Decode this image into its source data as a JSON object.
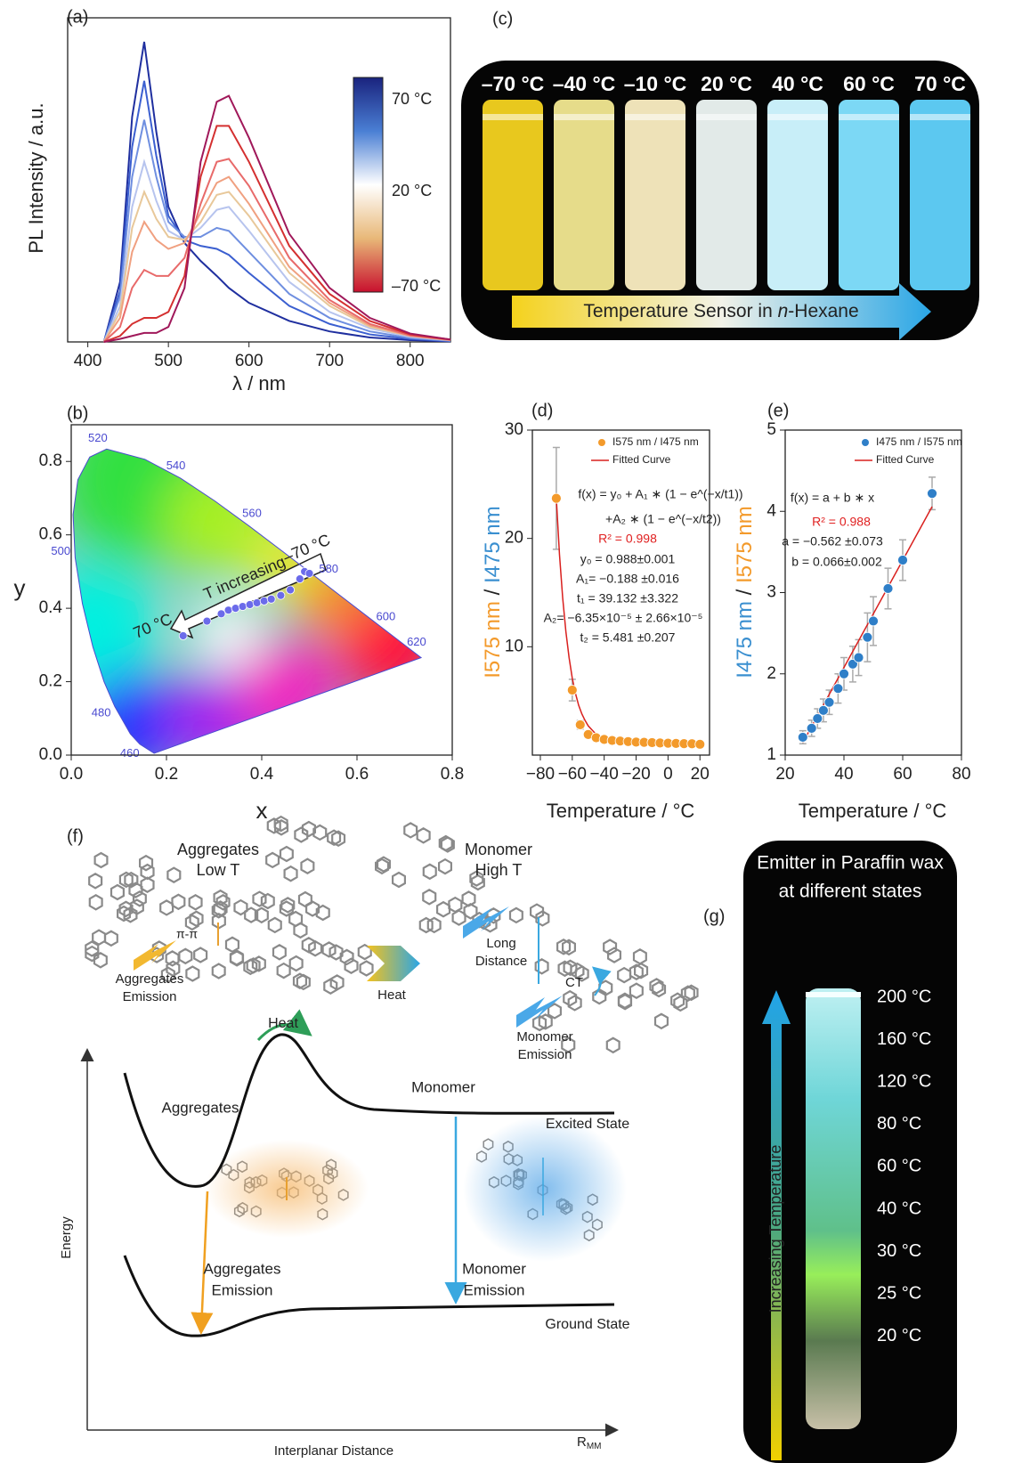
{
  "chart_data": [
    {
      "type": "line",
      "panel": "(a)",
      "xlabel": "λ / nm",
      "ylabel": "PL Intensity / a.u.",
      "xlim": [
        375,
        850
      ],
      "ylim": [
        0,
        1.08
      ],
      "xticks": [
        400,
        500,
        600,
        700,
        800
      ],
      "x": [
        420,
        440,
        455,
        470,
        485,
        500,
        520,
        540,
        560,
        575,
        600,
        650,
        700,
        750,
        800,
        850
      ],
      "series": [
        {
          "color": "#1f2f9f",
          "values": [
            0,
            0.2,
            0.75,
            1.0,
            0.7,
            0.45,
            0.33,
            0.27,
            0.22,
            0.18,
            0.13,
            0.07,
            0.035,
            0.015,
            0.006,
            0.002
          ]
        },
        {
          "color": "#3b5fd0",
          "values": [
            0,
            0.17,
            0.65,
            0.87,
            0.62,
            0.42,
            0.34,
            0.32,
            0.31,
            0.29,
            0.23,
            0.12,
            0.06,
            0.025,
            0.01,
            0.003
          ]
        },
        {
          "color": "#6f8fe0",
          "values": [
            0,
            0.15,
            0.55,
            0.74,
            0.55,
            0.4,
            0.35,
            0.35,
            0.38,
            0.37,
            0.3,
            0.16,
            0.08,
            0.035,
            0.013,
            0.004
          ]
        },
        {
          "color": "#b7c4ee",
          "values": [
            0,
            0.12,
            0.45,
            0.6,
            0.47,
            0.37,
            0.34,
            0.38,
            0.44,
            0.45,
            0.37,
            0.2,
            0.1,
            0.045,
            0.017,
            0.005
          ]
        },
        {
          "color": "#e8c89a",
          "values": [
            0,
            0.1,
            0.38,
            0.5,
            0.41,
            0.35,
            0.34,
            0.4,
            0.49,
            0.5,
            0.42,
            0.23,
            0.12,
            0.05,
            0.02,
            0.006
          ]
        },
        {
          "color": "#f0a080",
          "values": [
            0,
            0.08,
            0.3,
            0.4,
            0.34,
            0.31,
            0.33,
            0.43,
            0.53,
            0.55,
            0.46,
            0.25,
            0.13,
            0.055,
            0.02,
            0.006
          ]
        },
        {
          "color": "#e86a6a",
          "values": [
            0,
            0.05,
            0.18,
            0.24,
            0.22,
            0.22,
            0.28,
            0.46,
            0.6,
            0.61,
            0.52,
            0.28,
            0.14,
            0.06,
            0.022,
            0.007
          ]
        },
        {
          "color": "#d43030",
          "values": [
            0,
            0.02,
            0.06,
            0.08,
            0.08,
            0.1,
            0.22,
            0.55,
            0.72,
            0.72,
            0.6,
            0.32,
            0.16,
            0.07,
            0.025,
            0.008
          ]
        },
        {
          "color": "#a0185a",
          "values": [
            0,
            0.01,
            0.02,
            0.03,
            0.03,
            0.05,
            0.18,
            0.6,
            0.8,
            0.82,
            0.68,
            0.36,
            0.18,
            0.08,
            0.028,
            0.008
          ]
        }
      ],
      "colorbar": {
        "colors": [
          "#1a237e",
          "#4a7fd4",
          "#ffffff",
          "#e8b878",
          "#c8102e"
        ],
        "labels": [
          "70 °C",
          "20 °C",
          "–70 °C"
        ]
      }
    },
    {
      "type": "scatter",
      "panel": "(b)",
      "xlabel": "x",
      "ylabel": "y",
      "xlim": [
        0,
        0.8
      ],
      "ylim": [
        0,
        0.9
      ],
      "xticks": [
        {
          "value": 0,
          "label": "0.0"
        },
        0.2,
        0.4,
        0.6,
        0.8
      ],
      "yticks": [
        {
          "value": 0,
          "label": "0.0"
        },
        0.2,
        0.4,
        0.6,
        0.8
      ],
      "x": [
        0.235,
        0.285,
        0.315,
        0.33,
        0.345,
        0.36,
        0.375,
        0.39,
        0.405,
        0.42,
        0.44,
        0.46,
        0.48,
        0.49,
        0.5
      ],
      "values": [
        0.325,
        0.365,
        0.385,
        0.395,
        0.4,
        0.405,
        0.41,
        0.415,
        0.42,
        0.425,
        0.435,
        0.45,
        0.48,
        0.5,
        0.495
      ],
      "color": "#6b6bea",
      "locus_color": "#4a4ad0",
      "locus": [
        {
          "x": 0.1741,
          "y": 0.005
        },
        {
          "x": 0.144,
          "y": 0.0297,
          "label": 460
        },
        {
          "x": 0.1241,
          "y": 0.0578
        },
        {
          "x": 0.0913,
          "y": 0.1327,
          "label": 480
        },
        {
          "x": 0.0687,
          "y": 0.2007
        },
        {
          "x": 0.0454,
          "y": 0.295
        },
        {
          "x": 0.0235,
          "y": 0.4127
        },
        {
          "x": 0.0082,
          "y": 0.5384,
          "label": 500
        },
        {
          "x": 0.0039,
          "y": 0.6548
        },
        {
          "x": 0.0139,
          "y": 0.7502
        },
        {
          "x": 0.0389,
          "y": 0.812
        },
        {
          "x": 0.0743,
          "y": 0.8338,
          "label": 520
        },
        {
          "x": 0.1547,
          "y": 0.8059
        },
        {
          "x": 0.2296,
          "y": 0.7543,
          "label": 540
        },
        {
          "x": 0.3016,
          "y": 0.6923
        },
        {
          "x": 0.3731,
          "y": 0.6245,
          "label": 560
        },
        {
          "x": 0.4441,
          "y": 0.5547
        },
        {
          "x": 0.5125,
          "y": 0.4866,
          "label": 580
        },
        {
          "x": 0.5752,
          "y": 0.4242
        },
        {
          "x": 0.627,
          "y": 0.3725,
          "label": 600
        },
        {
          "x": 0.6915,
          "y": 0.3083,
          "label": 620
        },
        {
          "x": 0.7347,
          "y": 0.2653
        }
      ],
      "annotations": [
        {
          "text": "T increasing"
        },
        {
          "text": "70 °C"
        },
        {
          "text": "–70 °C"
        }
      ]
    },
    {
      "type": "scatter",
      "panel": "(d)",
      "xlabel": "Temperature / °C",
      "ylabel": [
        {
          "text": "I575 nm",
          "color": "#f39a2b"
        },
        {
          "text": " / ",
          "color": "#222222"
        },
        {
          "text": "I475 nm",
          "color": "#3a8fd0"
        }
      ],
      "xlim": [
        -85,
        26
      ],
      "ylim": [
        0,
        30
      ],
      "xticks": [
        {
          "value": -80,
          "label": "−80"
        },
        {
          "value": -60,
          "label": "−60"
        },
        {
          "value": -40,
          "label": "−40"
        },
        {
          "value": -20,
          "label": "−20"
        },
        0,
        20
      ],
      "yticks": [
        10,
        20,
        30
      ],
      "name": "I575 nm / I475 nm",
      "color": "#f39a2b",
      "x": [
        -70,
        -60,
        -55,
        -50,
        -45,
        -40,
        -35,
        -30,
        -25,
        -20,
        -15,
        -10,
        -5,
        0,
        5,
        10,
        15,
        20
      ],
      "values": [
        23.7,
        6.0,
        2.8,
        1.9,
        1.6,
        1.45,
        1.35,
        1.3,
        1.25,
        1.2,
        1.18,
        1.15,
        1.12,
        1.1,
        1.08,
        1.06,
        1.05,
        1.0
      ],
      "errors": [
        4.7,
        1.0,
        0.4,
        0.3,
        0.2,
        0.15,
        0.15,
        0.12,
        0.12,
        0.1,
        0.1,
        0.1,
        0.1,
        0.1,
        0.1,
        0.1,
        0.1,
        0.1
      ],
      "fit": {
        "name": "Fitted Curve",
        "color": "#d9201e",
        "x": [
          -70,
          -68,
          -66,
          -64,
          -62,
          -60,
          -58,
          -56,
          -54,
          -52,
          -50,
          -45,
          -40,
          -30,
          -20,
          -10,
          0,
          10,
          20
        ],
        "values": [
          23.7,
          18.5,
          14.5,
          11.4,
          9.0,
          7.1,
          5.7,
          4.6,
          3.8,
          3.2,
          2.7,
          1.9,
          1.5,
          1.2,
          1.08,
          1.03,
          1.0,
          0.99,
          0.99
        ]
      },
      "annotations": [
        {
          "text": "f(x) = y₀ + A₁ ∗ (1 − e^(−x/t1))"
        },
        {
          "text": "+A₂ ∗ (1 − e^(−x/t2))"
        },
        {
          "text": "R² = 0.998",
          "color": "#e02020"
        },
        {
          "text": "y₀ = 0.988±0.001"
        },
        {
          "text": "A₁= −0.188 ±0.016"
        },
        {
          "text": "t₁ = 39.132 ±3.322"
        },
        {
          "text": "A₂= −6.35×10⁻⁵ ± 2.66×10⁻⁵"
        },
        {
          "text": "t₂ = 5.481 ±0.207"
        }
      ]
    },
    {
      "type": "scatter",
      "panel": "(e)",
      "xlabel": "Temperature / °C",
      "ylabel": [
        {
          "text": "I475 nm",
          "color": "#3a8fd0"
        },
        {
          "text": " / ",
          "color": "#222222"
        },
        {
          "text": "I575 nm",
          "color": "#f39a2b"
        }
      ],
      "xlim": [
        20,
        80
      ],
      "ylim": [
        1,
        5
      ],
      "xticks": [
        20,
        40,
        60,
        80
      ],
      "yticks": [
        1,
        2,
        3,
        4,
        5
      ],
      "name": "I475 nm / I575 nm",
      "color": "#2f7fc8",
      "x": [
        26,
        29,
        31,
        33,
        35,
        38,
        40,
        43,
        45,
        48,
        50,
        55,
        60,
        70
      ],
      "values": [
        1.22,
        1.33,
        1.45,
        1.55,
        1.65,
        1.82,
        2.0,
        2.12,
        2.2,
        2.45,
        2.65,
        3.05,
        3.4,
        4.22
      ],
      "errors": [
        0.08,
        0.1,
        0.12,
        0.14,
        0.15,
        0.18,
        0.2,
        0.22,
        0.22,
        0.3,
        0.3,
        0.25,
        0.25,
        0.2
      ],
      "fit": {
        "name": "Fitted Curve",
        "color": "#d9201e",
        "x": [
          26,
          70
        ],
        "values": [
          1.154,
          4.058
        ]
      },
      "annotations": [
        {
          "text": "f(x) = a + b ∗ x"
        },
        {
          "text": "R² = 0.988",
          "color": "#e02020"
        },
        {
          "text": "a = −0.562 ±0.073"
        },
        {
          "text": "b = 0.066±0.002"
        }
      ]
    }
  ],
  "panel_c": {
    "panel": "(c)",
    "labels": [
      "–70 °C",
      "–40 °C",
      "–10 °C",
      "20 °C",
      "40 °C",
      "60 °C",
      "70 °C"
    ],
    "vial_colors": [
      "#e8c81e",
      "#e6dc8a",
      "#eee2b8",
      "#e2eae8",
      "#c8eef8",
      "#7cd8f5",
      "#5cc8f0"
    ],
    "arrow_text": [
      "Temperature Sensor in ",
      "n",
      "-Hexane"
    ]
  },
  "panel_f": {
    "panel": "(f)",
    "aggregates_state": [
      "Aggregates",
      "Low T"
    ],
    "pi_pi": "π-π",
    "aggregates_emission_top": [
      "Aggregates",
      "Emission"
    ],
    "heat_top": "Heat",
    "monomer_state": [
      "Monomer",
      "High T"
    ],
    "long_distance": [
      "Long",
      "Distance"
    ],
    "ct": "CT",
    "monomer_emission_top": [
      "Monomer",
      "Emission"
    ],
    "heat": "Heat",
    "monomer": "Monomer",
    "aggregates": "Aggregates",
    "excited_state": "Excited State",
    "energy_axis": "Energy",
    "aggregates_emission": [
      "Aggregates",
      "Emission"
    ],
    "monomer_emission": [
      "Monomer",
      "Emission"
    ],
    "ground_state": "Ground State",
    "x_axis": "Interplanar Distance",
    "r_mm": [
      "R",
      "MM"
    ]
  },
  "panel_g": {
    "panel": "(g)",
    "title": [
      "Emitter in Paraffin wax",
      "at different states"
    ],
    "labels": [
      "200 °C",
      "160 °C",
      "120 °C",
      "80 °C",
      "60 °C",
      "40 °C",
      "30 °C",
      "25 °C",
      "20 °C"
    ],
    "arrow_text": "Increasing Temperature"
  }
}
